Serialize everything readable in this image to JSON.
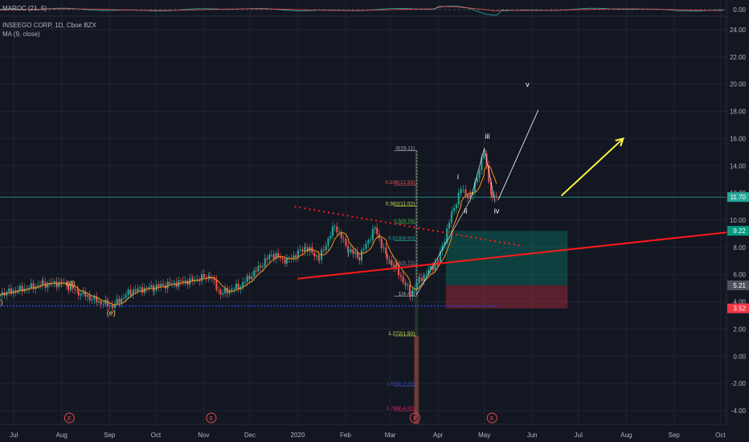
{
  "colors": {
    "background": "#131722",
    "grid": "#1f2430",
    "axis_text": "#b2b5be",
    "up": "#26a69a",
    "down": "#ef5350",
    "ma": "#f7931a",
    "osc": "#26a69a",
    "price_line": "#26a69a",
    "trend_red": "#ff1a1a",
    "wave_line": "#ffffff",
    "arrow": "#f5f242",
    "support": "#2a3fd8",
    "fib_line": "#ffffff"
  },
  "indicators": {
    "oscillator": "MAROC (21, 5)",
    "symbol": "INSEEGO CORP, 1D, Cboe BZX",
    "ma": "MA (9, close)"
  },
  "chart_data": {
    "type": "candlestick",
    "title": "INSEEGO CORP, 1D, Cboe BZX",
    "ylim": [
      -5,
      25
    ],
    "y_ticks": [
      "24.00",
      "22.00",
      "20.00",
      "18.00",
      "16.00",
      "14.00",
      "12.00",
      "10.00",
      "8.00",
      "6.00",
      "4.00",
      "2.00",
      "0.00",
      "-2.00",
      "-4.00"
    ],
    "oscillator_tick": "0.00",
    "x_ticks": [
      "Jul",
      "Aug",
      "Sep",
      "Oct",
      "Nov",
      "Dec",
      "2020",
      "Feb",
      "Mar",
      "Apr",
      "May",
      "Jun",
      "Jul",
      "Aug",
      "Sep",
      "Oct"
    ],
    "x_domain": [
      "2019-06-22",
      "2020-10-05"
    ],
    "price_path": [
      [
        "2019-06-22",
        4.6
      ],
      [
        "2019-07-05",
        4.9
      ],
      [
        "2019-07-20",
        5.3
      ],
      [
        "2019-08-01",
        5.4
      ],
      [
        "2019-08-12",
        4.7
      ],
      [
        "2019-08-25",
        4.0
      ],
      [
        "2019-09-03",
        3.7
      ],
      [
        "2019-09-15",
        4.8
      ],
      [
        "2019-09-30",
        5.1
      ],
      [
        "2019-10-10",
        5.3
      ],
      [
        "2019-10-25",
        5.6
      ],
      [
        "2019-11-05",
        5.9
      ],
      [
        "2019-11-12",
        4.6
      ],
      [
        "2019-11-25",
        5.2
      ],
      [
        "2019-12-05",
        6.3
      ],
      [
        "2019-12-15",
        7.5
      ],
      [
        "2019-12-25",
        7.0
      ],
      [
        "2020-01-06",
        8.0
      ],
      [
        "2020-01-15",
        7.2
      ],
      [
        "2020-01-25",
        9.6
      ],
      [
        "2020-02-03",
        7.8
      ],
      [
        "2020-02-10",
        7.3
      ],
      [
        "2020-02-20",
        9.4
      ],
      [
        "2020-02-28",
        7.2
      ],
      [
        "2020-03-05",
        6.4
      ],
      [
        "2020-03-14",
        4.6
      ],
      [
        "2020-03-20",
        5.6
      ],
      [
        "2020-04-01",
        7.0
      ],
      [
        "2020-04-10",
        10.5
      ],
      [
        "2020-04-16",
        12.3
      ],
      [
        "2020-04-22",
        11.6
      ],
      [
        "2020-05-01",
        15.0
      ],
      [
        "2020-05-06",
        11.5
      ],
      [
        "2020-05-10",
        12.0
      ]
    ],
    "fib_levels": [
      {
        "label": "0(15.11)",
        "value": 15.11,
        "color": "#b2b5be"
      },
      {
        "label": "0.236(12.59)",
        "value": 12.59,
        "color": "#ef5350"
      },
      {
        "label": "0.382(11.02)",
        "value": 11.02,
        "color": "#c8e650"
      },
      {
        "label": "0.5(9.76)",
        "value": 9.76,
        "color": "#4caf50"
      },
      {
        "label": "0.618(8.50)",
        "value": 8.5,
        "color": "#26a69a"
      },
      {
        "label": "0.786(6.70)",
        "value": 6.7,
        "color": "#787b86"
      },
      {
        "label": "1(4.41)",
        "value": 4.41,
        "color": "#b2b5be"
      },
      {
        "label": "1.272(1.50)",
        "value": 1.5,
        "color": "#c8e650"
      },
      {
        "label": "1.618(-2.20)",
        "value": -2.2,
        "color": "#3f51b5"
      },
      {
        "label": "1.786(-4.00)",
        "value": -4.0,
        "color": "#e91e63"
      }
    ],
    "wave_labels": [
      {
        "text": "(d)",
        "date": "2019-08-07",
        "value": 5.2,
        "color": "#f7c873"
      },
      {
        "text": "(e)",
        "date": "2019-09-02",
        "value": 3.0,
        "color": "#f7c873"
      },
      {
        "text": "c)",
        "date": "2019-06-22",
        "value": 3.8,
        "color": "#f7c873"
      },
      {
        "text": "i",
        "date": "2020-04-14",
        "value": 13.0,
        "color": "#ffffff"
      },
      {
        "text": "ii",
        "date": "2020-04-19",
        "value": 10.5,
        "color": "#ffffff"
      },
      {
        "text": "iii",
        "date": "2020-05-03",
        "value": 16.0,
        "color": "#ffffff"
      },
      {
        "text": "iv",
        "date": "2020-05-09",
        "value": 10.5,
        "color": "#ffffff"
      },
      {
        "text": "v",
        "date": "2020-05-29",
        "value": 19.8,
        "color": "#ffffff"
      }
    ],
    "wave_projection": [
      [
        "2020-05-10",
        11.5
      ],
      [
        "2020-06-05",
        18.1
      ]
    ],
    "projection_arrow": [
      [
        "2020-06-20",
        11.8
      ],
      [
        "2020-07-30",
        16.0
      ]
    ],
    "trendline_red": [
      [
        "2020-01-01",
        5.7
      ],
      [
        "2020-10-05",
        9.1
      ]
    ],
    "dotted_resistance": [
      [
        "2019-12-30",
        11.0
      ],
      [
        "2020-05-26",
        8.1
      ]
    ],
    "support_line": {
      "value": 3.7,
      "from": "2019-06-22",
      "to": "2020-05-10"
    },
    "horizontal_level": 11.7,
    "position_box": {
      "from": "2020-04-06",
      "to": "2020-06-24",
      "entry": 5.21,
      "target": 9.22,
      "stop": 3.52
    },
    "fib_anchor_date": "2020-03-18",
    "earnings_dates": [
      "2019-08-06",
      "2019-11-06",
      "2020-03-17",
      "2020-05-06"
    ],
    "earnings_label": "E",
    "price_labels": [
      {
        "text": "11.70",
        "value": 11.7,
        "color": "#26a69a"
      },
      {
        "text": "9.22",
        "value": 9.22,
        "color": "#089981"
      },
      {
        "text": "5.21",
        "value": 5.21,
        "color": "#50535e"
      },
      {
        "text": "3.52",
        "value": 3.52,
        "color": "#f23645"
      }
    ]
  }
}
